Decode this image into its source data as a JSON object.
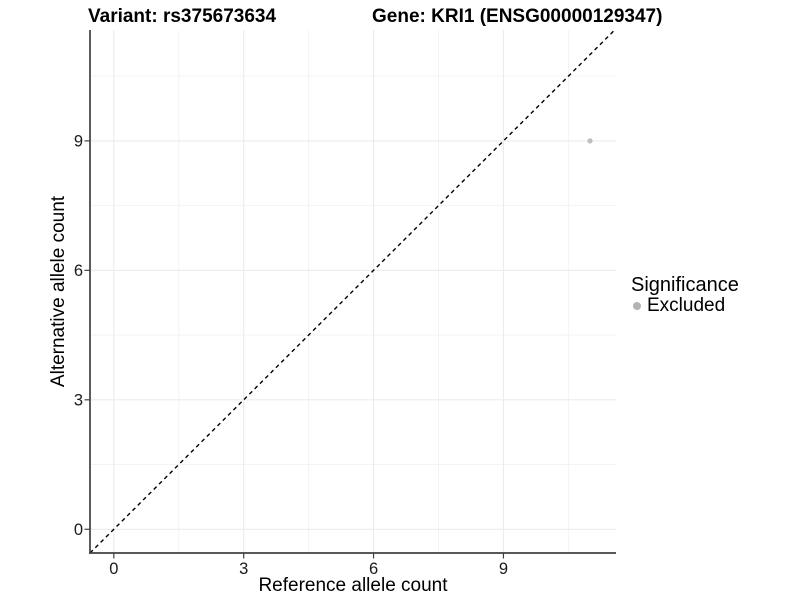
{
  "chart_data": {
    "type": "scatter",
    "titles": {
      "variant": "Variant: rs375673634",
      "gene": "Gene: KRI1 (ENSG00000129347)"
    },
    "xlabel": "Reference allele count",
    "ylabel": "Alternative allele count",
    "x_ticks": [
      0,
      3,
      6,
      9
    ],
    "y_ticks": [
      0,
      3,
      6,
      9
    ],
    "x_minor_gridlines": [
      1.5,
      4.5,
      7.5,
      10.5
    ],
    "y_minor_gridlines": [
      1.5,
      4.5,
      7.5,
      10.5
    ],
    "xlim": [
      -0.55,
      11.6
    ],
    "ylim": [
      -0.55,
      11.57
    ],
    "grid": true,
    "points": [
      {
        "x": 11,
        "y": 9,
        "significance": "Excluded"
      }
    ],
    "identity_line": {
      "slope": 1,
      "intercept": 0,
      "style": "dashed"
    },
    "legend": {
      "title": "Significance",
      "position": "right",
      "items": [
        {
          "label": "Excluded",
          "color": "#b3b3b3"
        }
      ]
    },
    "style": {
      "background": "#ffffff",
      "point_color": "#bfbfbf",
      "point_radius": 2.6,
      "legend_dot_color": "#b3b3b3",
      "grid_major_color": "#ececec",
      "grid_minor_color": "#f3f3f3",
      "axis_line_color": "#404040",
      "identity_line_color": "#000000",
      "text_color": "#000000",
      "tick_label_color": "#1a1a1a"
    }
  }
}
